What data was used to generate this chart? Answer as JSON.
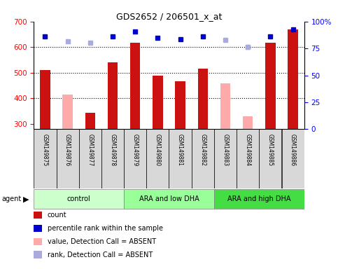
{
  "title": "GDS2652 / 206501_x_at",
  "samples": [
    "GSM149875",
    "GSM149876",
    "GSM149877",
    "GSM149878",
    "GSM149879",
    "GSM149880",
    "GSM149881",
    "GSM149882",
    "GSM149883",
    "GSM149884",
    "GSM149885",
    "GSM149886"
  ],
  "count_present": [
    511,
    null,
    345,
    541,
    617,
    490,
    468,
    516,
    null,
    null,
    617,
    668
  ],
  "count_absent": [
    null,
    415,
    null,
    null,
    null,
    null,
    null,
    null,
    458,
    330,
    null,
    null
  ],
  "rank_absent": [
    null,
    622,
    617,
    null,
    null,
    null,
    null,
    null,
    627,
    600,
    null,
    null
  ],
  "perc_present": [
    642,
    null,
    null,
    642,
    662,
    637,
    630,
    642,
    null,
    null,
    642,
    668
  ],
  "perc_absent": [
    null,
    null,
    null,
    null,
    null,
    null,
    null,
    null,
    null,
    600,
    null,
    null
  ],
  "ylim": [
    280,
    700
  ],
  "yticks": [
    300,
    400,
    500,
    600,
    700
  ],
  "y2ticks": [
    0,
    25,
    50,
    75,
    100
  ],
  "dotted_lines": [
    400,
    500,
    600
  ],
  "groups": [
    {
      "label": "control",
      "start": 0,
      "end": 4,
      "color": "#ccffcc"
    },
    {
      "label": "ARA and low DHA",
      "start": 4,
      "end": 8,
      "color": "#99ff99"
    },
    {
      "label": "ARA and high DHA",
      "start": 8,
      "end": 12,
      "color": "#44dd44"
    }
  ],
  "bar_color_present": "#cc1111",
  "bar_color_absent": "#ffaaaa",
  "dot_color_present": "#0000cc",
  "dot_color_absent": "#aaaadd",
  "label_bg": "#d8d8d8",
  "legend_items": [
    {
      "color": "#cc1111",
      "label": "count"
    },
    {
      "color": "#0000cc",
      "label": "percentile rank within the sample"
    },
    {
      "color": "#ffaaaa",
      "label": "value, Detection Call = ABSENT"
    },
    {
      "color": "#aaaadd",
      "label": "rank, Detection Call = ABSENT"
    }
  ]
}
